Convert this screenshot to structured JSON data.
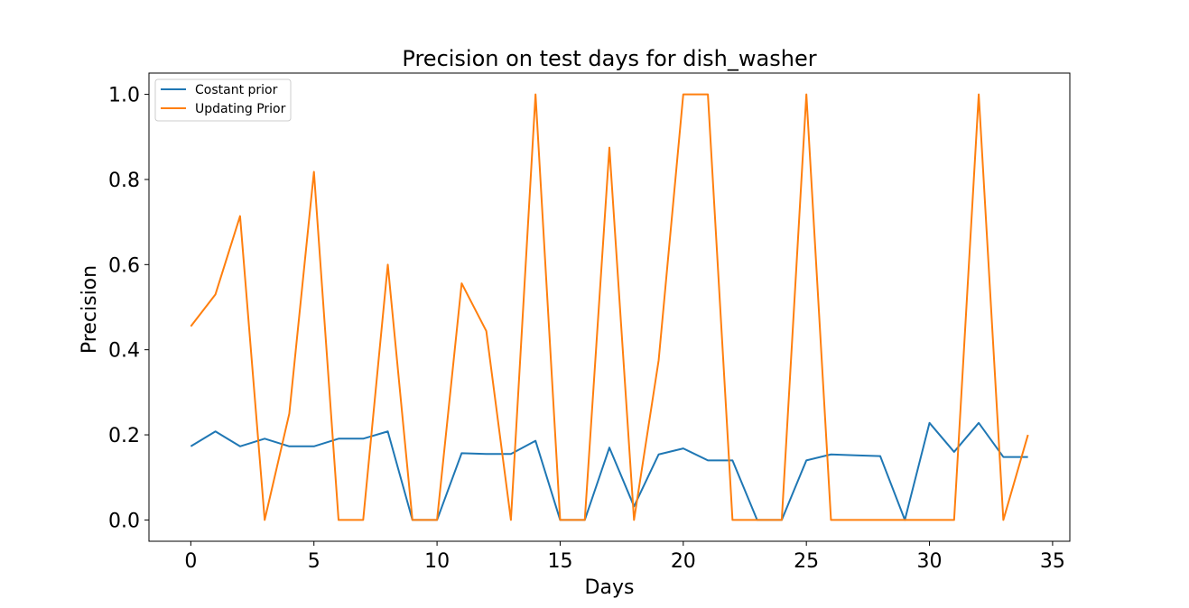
{
  "chart_data": {
    "type": "line",
    "title": "Precision on test days for dish_washer",
    "xlabel": "Days",
    "ylabel": "Precision",
    "xlim": [
      -1.7,
      35.7
    ],
    "ylim": [
      -0.05,
      1.05
    ],
    "xticks": [
      0,
      5,
      10,
      15,
      20,
      25,
      30,
      35
    ],
    "xtick_labels": [
      "0",
      "5",
      "10",
      "15",
      "20",
      "25",
      "30",
      "35"
    ],
    "yticks": [
      0.0,
      0.2,
      0.4,
      0.6,
      0.8,
      1.0
    ],
    "ytick_labels": [
      "0.0",
      "0.2",
      "0.4",
      "0.6",
      "0.8",
      "1.0"
    ],
    "grid": false,
    "legend_position": "top-left",
    "x": [
      0,
      1,
      2,
      3,
      4,
      5,
      6,
      7,
      8,
      9,
      10,
      11,
      12,
      13,
      14,
      15,
      16,
      17,
      18,
      19,
      20,
      21,
      22,
      23,
      24,
      25,
      26,
      27,
      28,
      29,
      30,
      31,
      32,
      33,
      34
    ],
    "series": [
      {
        "name": "Costant prior",
        "color": "#1f77b4",
        "values": [
          0.173,
          0.208,
          0.173,
          0.191,
          0.173,
          0.173,
          0.191,
          0.191,
          0.208,
          0.0,
          0.0,
          0.157,
          0.155,
          0.155,
          0.186,
          0.0,
          0.0,
          0.17,
          0.032,
          0.154,
          0.168,
          0.14,
          0.14,
          0.0,
          0.0,
          0.14,
          0.154,
          0.152,
          0.15,
          0.0,
          0.228,
          0.16,
          0.228,
          0.148,
          0.148
        ]
      },
      {
        "name": "Updating Prior",
        "color": "#ff7f0e",
        "values": [
          0.455,
          0.53,
          0.714,
          0.0,
          0.25,
          0.818,
          0.0,
          0.0,
          0.6,
          0.0,
          0.0,
          0.556,
          0.444,
          0.0,
          1.0,
          0.0,
          0.0,
          0.875,
          0.0,
          0.375,
          1.0,
          1.0,
          0.0,
          0.0,
          0.0,
          1.0,
          0.0,
          0.0,
          0.0,
          0.0,
          0.0,
          0.0,
          1.0,
          0.0,
          0.2
        ]
      }
    ]
  }
}
